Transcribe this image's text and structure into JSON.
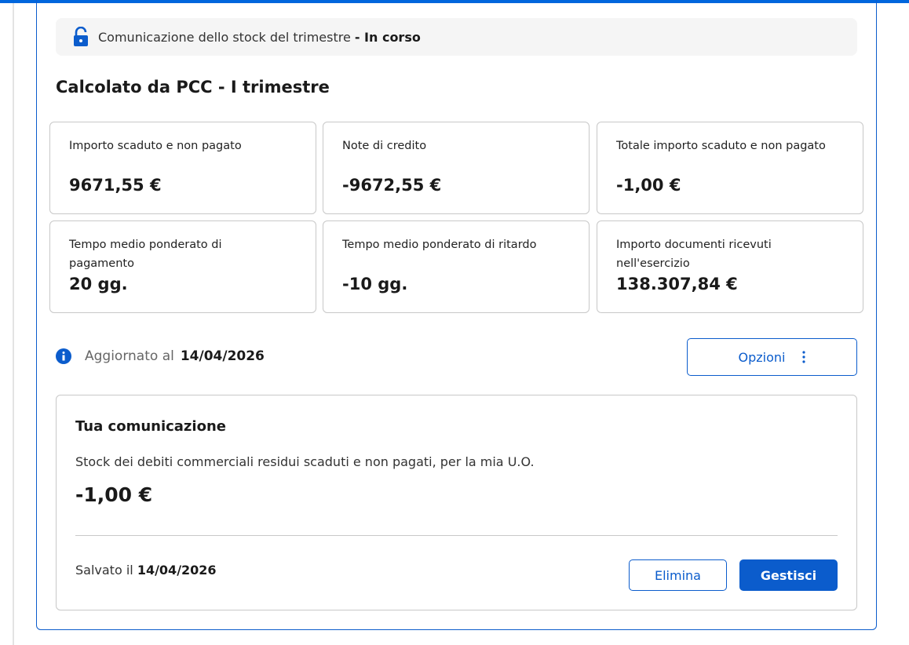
{
  "banner": {
    "text": "Comunicazione dello stock del trimestre",
    "status": "- In corso",
    "icon": "lock-open-icon"
  },
  "section_title": "Calcolato da PCC - I trimestre",
  "cards": [
    {
      "label": "Importo scaduto e non pagato",
      "value": "9671,55 €"
    },
    {
      "label": "Note di credito",
      "value": "-9672,55 €"
    },
    {
      "label": "Totale importo scaduto e non pagato",
      "value": "-1,00 €"
    },
    {
      "label": "Tempo medio ponderato di pagamento",
      "value": "20 gg."
    },
    {
      "label": "Tempo medio ponderato di ritardo",
      "value": "-10 gg."
    },
    {
      "label": "Importo documenti ricevuti nell'esercizio",
      "value": "138.307,84 €"
    }
  ],
  "updated": {
    "label": "Aggiornato al",
    "date": "14/04/2026"
  },
  "options_button": "Opzioni",
  "communication": {
    "title": "Tua comunicazione",
    "description": "Stock dei debiti commerciali residui scaduti e non pagati, per la mia U.O.",
    "value": "-1,00 €",
    "saved_label": "Salvato il",
    "saved_date": "14/04/2026",
    "delete_button": "Elimina",
    "manage_button": "Gestisci"
  },
  "colors": {
    "primary": "#0b5ccc",
    "banner_bg": "#f5f5f5"
  }
}
